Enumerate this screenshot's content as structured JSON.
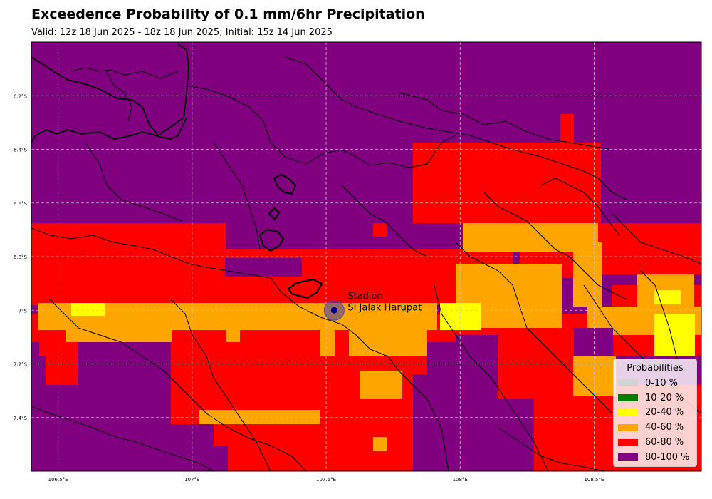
{
  "title": "Exceedence Probability of 0.1 mm/6hr Precipitation",
  "subtitle": "Valid: 12z 18 Jun 2025 - 18z 18 Jun 2025; Initial: 15z 14 Jun 2025",
  "map": {
    "lon_range": [
      106.4,
      108.9
    ],
    "lat_range": [
      -7.6,
      -6.0
    ],
    "lon_ticks": [
      106.5,
      107.0,
      107.5,
      108.0,
      108.5
    ],
    "lon_tick_labels": [
      "106.5°E",
      "107°E",
      "107.5°E",
      "108°E",
      "108.5°E"
    ],
    "lat_ticks": [
      -6.2,
      -6.4,
      -6.6,
      -6.8,
      -7.0,
      -7.2,
      -7.4
    ],
    "lat_tick_labels": [
      "6.2°S",
      "6.4°S",
      "6.6°S",
      "6.8°S",
      "7°S",
      "7.2°S",
      "7.4°S"
    ],
    "gridlines": true
  },
  "station": {
    "name_line1": "Stadion",
    "name_line2": "SI Jalak Harupat",
    "lon": 107.53,
    "lat": -7.0
  },
  "legend": {
    "title": "Probabilities",
    "placement": "bottom-right",
    "items": [
      {
        "label": "0-10 %",
        "color": "#d3d3d3"
      },
      {
        "label": "10-20 %",
        "color": "#008000"
      },
      {
        "label": "20-40 %",
        "color": "#ffff00"
      },
      {
        "label": "40-60 %",
        "color": "#ffa500"
      },
      {
        "label": "60-80 %",
        "color": "#ff0000"
      },
      {
        "label": "80-100 %",
        "color": "#800080"
      }
    ]
  }
}
